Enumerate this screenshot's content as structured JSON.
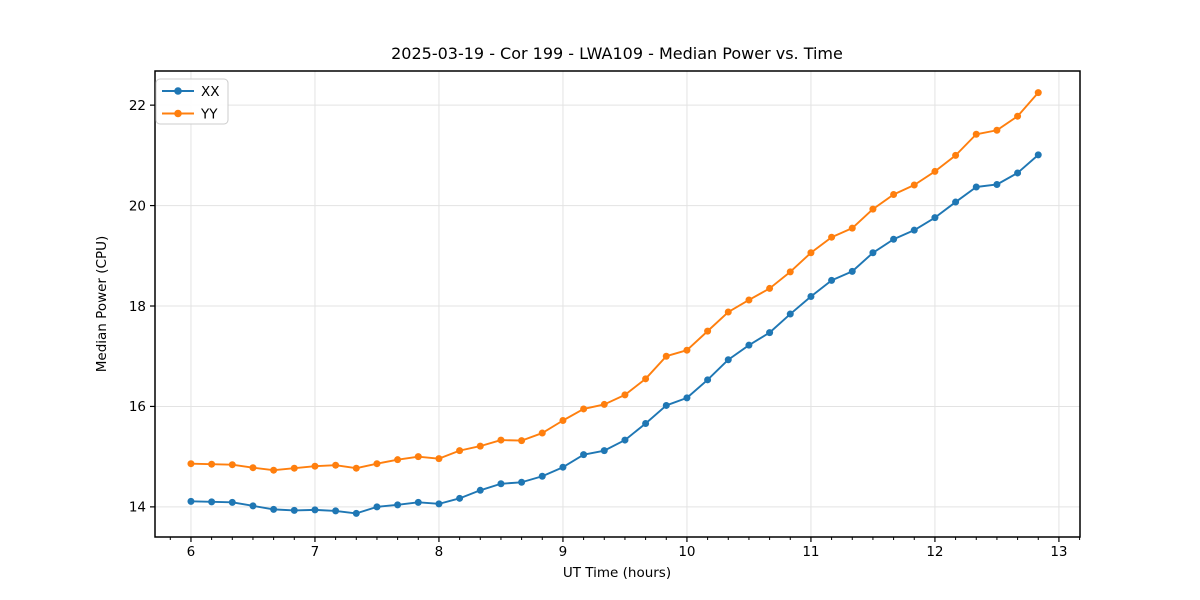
{
  "chart_data": {
    "type": "line",
    "title": "2025-03-19 - Cor 199 - LWA109 - Median Power vs. Time",
    "xlabel": "UT Time (hours)",
    "ylabel": "Median Power (CPU)",
    "xlim": [
      5.71,
      13.17
    ],
    "ylim": [
      13.4,
      22.68
    ],
    "xticks": [
      6,
      7,
      8,
      9,
      10,
      11,
      12,
      13
    ],
    "xtick_labels": [
      "6",
      "7",
      "8",
      "9",
      "10",
      "11",
      "12",
      "13"
    ],
    "x_minor_step": 0.1666667,
    "yticks": [
      14,
      16,
      18,
      20,
      22
    ],
    "ytick_labels": [
      "14",
      "16",
      "18",
      "20",
      "22"
    ],
    "grid": true,
    "legend_position": "upper-left",
    "x": [
      6.0,
      6.1667,
      6.3333,
      6.5,
      6.6667,
      6.8333,
      7.0,
      7.1667,
      7.3333,
      7.5,
      7.6667,
      7.8333,
      8.0,
      8.1667,
      8.3333,
      8.5,
      8.6667,
      8.8333,
      9.0,
      9.1667,
      9.3333,
      9.5,
      9.6667,
      9.8333,
      10.0,
      10.1667,
      10.3333,
      10.5,
      10.6667,
      10.8333,
      11.0,
      11.1667,
      11.3333,
      11.5,
      11.6667,
      11.8333,
      12.0,
      12.1667,
      12.3333,
      12.5,
      12.6667,
      12.8333
    ],
    "series": [
      {
        "name": "XX",
        "color": "#1f77b4",
        "values": [
          14.11,
          14.1,
          14.09,
          14.02,
          13.95,
          13.93,
          13.94,
          13.92,
          13.87,
          14.0,
          14.04,
          14.09,
          14.06,
          14.17,
          14.33,
          14.46,
          14.49,
          14.61,
          14.79,
          15.04,
          15.12,
          15.33,
          15.66,
          16.02,
          16.17,
          16.53,
          16.93,
          17.22,
          17.47,
          17.84,
          18.19,
          18.51,
          18.69,
          19.06,
          19.33,
          19.51,
          19.76,
          20.07,
          20.37,
          20.42,
          20.65,
          21.01
        ]
      },
      {
        "name": "YY",
        "color": "#ff7f0e",
        "values": [
          14.86,
          14.85,
          14.84,
          14.78,
          14.73,
          14.77,
          14.81,
          14.83,
          14.77,
          14.86,
          14.94,
          15.0,
          14.96,
          15.12,
          15.21,
          15.33,
          15.32,
          15.47,
          15.72,
          15.95,
          16.04,
          16.23,
          16.55,
          17.0,
          17.12,
          17.5,
          17.88,
          18.12,
          18.35,
          18.68,
          19.06,
          19.37,
          19.55,
          19.93,
          20.22,
          20.41,
          20.68,
          21.0,
          21.42,
          21.5,
          21.78,
          22.25
        ]
      }
    ]
  },
  "colors": {
    "background": "#ffffff",
    "grid": "#e3e3e3",
    "spine": "#000000",
    "text": "#000000",
    "legend_border": "#cccccc",
    "legend_background": "#ffffff"
  }
}
